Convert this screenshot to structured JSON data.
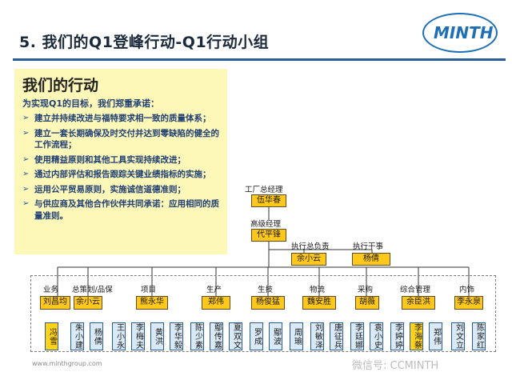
{
  "header": {
    "title": "5. 我们的Q1登峰行动-Q1行动小组",
    "logo": "MINTH"
  },
  "panel": {
    "title": "我们的行动",
    "subtitle": "为实现Q1的目标，我们郑重承诺：",
    "items": [
      "建立并持续改进与福特要求相一致的质量体系；",
      "建立一套长期确保及时交付并达到零缺陷的健全的工作流程；",
      "使用精益原则和其他工具实现持续改进；",
      "通过内部评估和报告跟踪关键业绩指标的实施；",
      "运用公平贸易原则，实施诚信道德准则；",
      "与供应商及其他合作伙伴共同承诺：应用相同的质量准则。"
    ]
  },
  "org": {
    "factory_gm": {
      "role": "工厂总经理",
      "name": "伍华春"
    },
    "senior_manager": {
      "role": "高级经理",
      "name": "代平锋"
    },
    "exec_lead": {
      "role": "执行总负责",
      "name": "余小云"
    },
    "exec_officer": {
      "role": "执行干事",
      "name": "杨倩"
    },
    "departments": [
      {
        "role": "业务",
        "name": "刘昌均"
      },
      {
        "role": "总策划/品保",
        "name": "余小云"
      },
      {
        "role": "项目",
        "name": "熊永华"
      },
      {
        "role": "生产",
        "name": "郑伟"
      },
      {
        "role": "生技",
        "name": "杨俊猛"
      },
      {
        "role": "物流",
        "name": "魏安胜"
      },
      {
        "role": "采购",
        "name": "胡薇"
      },
      {
        "role": "综合管理",
        "name": "余臣洪"
      },
      {
        "role": "内饰",
        "name": "李永泉"
      }
    ],
    "members": [
      "冯雪",
      "朱小建",
      "杨倩",
      "王小永",
      "李梅夫",
      "黄洪",
      "李华毅",
      "陈少素",
      "鄢传嘉",
      "夏双文",
      "罗成",
      "鄢波",
      "周瑜",
      "刘敏泽",
      "唐征兵",
      "李廷娜",
      "袁小史",
      "李婷婷",
      "李海蔡",
      "郑伟",
      "刘文立",
      "陈家红"
    ]
  },
  "footer": {
    "url": "www.minthgroup.com",
    "watermark": "微信号: CCMINTH"
  }
}
